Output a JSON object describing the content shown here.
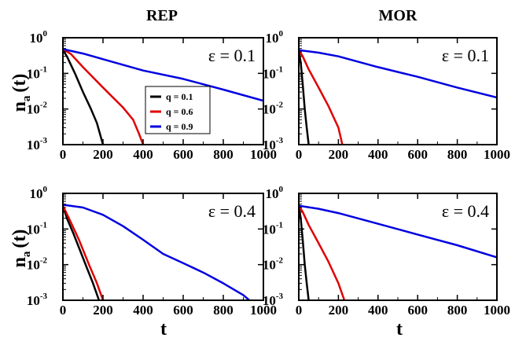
{
  "column_titles": [
    "REP",
    "MOR"
  ],
  "xlabel": "t",
  "ylabel_main": "n",
  "ylabel_sub": "a",
  "ylabel_tail": "(t)",
  "colors": {
    "q01": "#000000",
    "q06": "#e00000",
    "q09": "#0000e0",
    "axis": "#000000"
  },
  "legend": [
    "q = 0.1",
    "q = 0.6",
    "q = 0.9"
  ],
  "chart_data": [
    {
      "type": "line",
      "panel": "REP, ε = 0.1",
      "annotation": "ε = 0.1",
      "xlim": [
        0,
        1000
      ],
      "ylim": [
        0.001,
        1
      ],
      "yscale": "log",
      "xticks": [
        0,
        200,
        400,
        600,
        800,
        1000
      ],
      "yticks_exp": [
        0,
        -1,
        -2,
        -3
      ],
      "series": [
        {
          "name": "q = 0.1",
          "x": [
            0,
            20,
            60,
            100,
            140,
            170,
            200
          ],
          "y": [
            0.45,
            0.3,
            0.1,
            0.03,
            0.01,
            0.004,
            0.001
          ]
        },
        {
          "name": "q = 0.6",
          "x": [
            0,
            40,
            100,
            200,
            300,
            350,
            380,
            400
          ],
          "y": [
            0.48,
            0.35,
            0.15,
            0.04,
            0.011,
            0.005,
            0.002,
            0.001
          ]
        },
        {
          "name": "q = 0.9",
          "x": [
            0,
            100,
            200,
            400,
            600,
            800,
            1000
          ],
          "y": [
            0.48,
            0.36,
            0.25,
            0.12,
            0.07,
            0.035,
            0.017
          ]
        }
      ],
      "legend_shown": true
    },
    {
      "type": "line",
      "panel": "MOR, ε = 0.1",
      "annotation": "ε = 0.1",
      "xlim": [
        0,
        1000
      ],
      "ylim": [
        0.001,
        1
      ],
      "yscale": "log",
      "xticks": [
        0,
        200,
        400,
        600,
        800,
        1000
      ],
      "yticks_exp": [
        0,
        -1,
        -2,
        -3
      ],
      "series": [
        {
          "name": "q = 0.1",
          "x": [
            0,
            10,
            20,
            30,
            40,
            50
          ],
          "y": [
            0.45,
            0.2,
            0.05,
            0.01,
            0.003,
            0.001
          ]
        },
        {
          "name": "q = 0.6",
          "x": [
            0,
            20,
            50,
            100,
            150,
            200,
            220
          ],
          "y": [
            0.45,
            0.3,
            0.13,
            0.04,
            0.012,
            0.003,
            0.001
          ]
        },
        {
          "name": "q = 0.9",
          "x": [
            0,
            100,
            200,
            400,
            600,
            800,
            1000
          ],
          "y": [
            0.45,
            0.38,
            0.3,
            0.15,
            0.08,
            0.04,
            0.021
          ]
        }
      ]
    },
    {
      "type": "line",
      "panel": "REP, ε = 0.4",
      "annotation": "ε = 0.4",
      "xlim": [
        0,
        1000
      ],
      "ylim": [
        0.001,
        1
      ],
      "yscale": "log",
      "xticks": [
        0,
        200,
        400,
        600,
        800,
        1000
      ],
      "yticks_exp": [
        0,
        -1,
        -2,
        -3
      ],
      "series": [
        {
          "name": "q = 0.1",
          "x": [
            0,
            20,
            50,
            80,
            120,
            150,
            180
          ],
          "y": [
            0.45,
            0.2,
            0.08,
            0.03,
            0.008,
            0.003,
            0.001
          ]
        },
        {
          "name": "q = 0.6",
          "x": [
            0,
            30,
            80,
            130,
            170,
            200
          ],
          "y": [
            0.45,
            0.2,
            0.05,
            0.01,
            0.003,
            0.001
          ]
        },
        {
          "name": "q = 0.9",
          "x": [
            0,
            100,
            200,
            300,
            400,
            500,
            600,
            700,
            800,
            900,
            930
          ],
          "y": [
            0.48,
            0.4,
            0.25,
            0.12,
            0.05,
            0.02,
            0.011,
            0.006,
            0.003,
            0.0014,
            0.001
          ]
        }
      ]
    },
    {
      "type": "line",
      "panel": "MOR, ε = 0.4",
      "annotation": "ε = 0.4",
      "xlim": [
        0,
        1000
      ],
      "ylim": [
        0.001,
        1
      ],
      "yscale": "log",
      "xticks": [
        0,
        200,
        400,
        600,
        800,
        1000
      ],
      "yticks_exp": [
        0,
        -1,
        -2,
        -3
      ],
      "series": [
        {
          "name": "q = 0.1",
          "x": [
            0,
            10,
            20,
            30,
            40,
            50
          ],
          "y": [
            0.45,
            0.2,
            0.05,
            0.01,
            0.003,
            0.001
          ]
        },
        {
          "name": "q = 0.6",
          "x": [
            0,
            20,
            50,
            100,
            150,
            200,
            230
          ],
          "y": [
            0.45,
            0.3,
            0.13,
            0.04,
            0.012,
            0.003,
            0.001
          ]
        },
        {
          "name": "q = 0.9",
          "x": [
            0,
            100,
            200,
            400,
            600,
            800,
            1000
          ],
          "y": [
            0.45,
            0.37,
            0.28,
            0.14,
            0.07,
            0.035,
            0.016
          ]
        }
      ]
    }
  ]
}
